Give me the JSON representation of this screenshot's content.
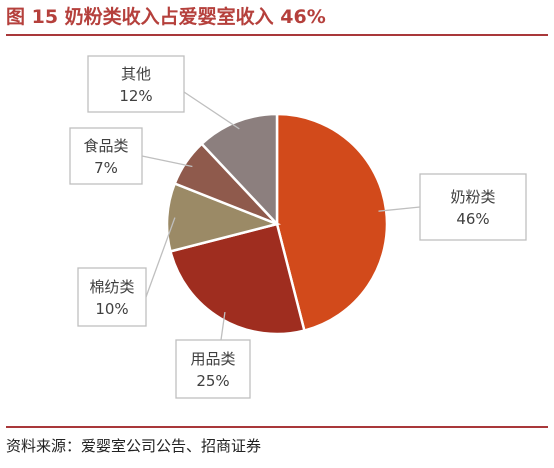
{
  "title": "图 15  奶粉类收入占爱婴室收入 46%",
  "source": "资料来源：爱婴室公司公告、招商证券",
  "chart_data": {
    "type": "pie",
    "start_angle_deg": 0,
    "direction": "clockwise",
    "slices": [
      {
        "label": "奶粉类",
        "value": 46,
        "value_label": "46%",
        "color": "#d24a1b"
      },
      {
        "label": "用品类",
        "value": 25,
        "value_label": "25%",
        "color": "#9f2d1f"
      },
      {
        "label": "棉纺类",
        "value": 10,
        "value_label": "10%",
        "color": "#9b8a66"
      },
      {
        "label": "食品类",
        "value": 7,
        "value_label": "7%",
        "color": "#8f5a4c"
      },
      {
        "label": "其他",
        "value": 12,
        "value_label": "12%",
        "color": "#8c7f7e"
      }
    ],
    "legend": "none"
  }
}
